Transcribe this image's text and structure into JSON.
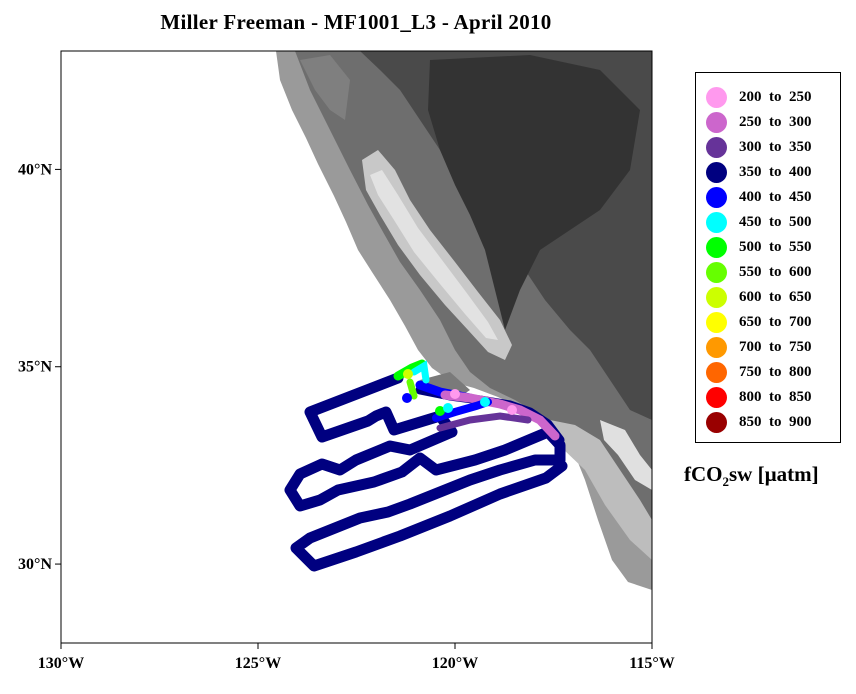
{
  "title": "Miller Freeman - MF1001_L3 - April 2010",
  "map": {
    "lon_range": [
      -130,
      -115
    ],
    "lat_range": [
      28,
      43
    ],
    "x_ticks": [
      {
        "value": -130,
        "label": "130°W"
      },
      {
        "value": -125,
        "label": "125°W"
      },
      {
        "value": -120,
        "label": "120°W"
      },
      {
        "value": -115,
        "label": "115°W"
      }
    ],
    "y_ticks": [
      {
        "value": 30,
        "label": "30°N"
      },
      {
        "value": 35,
        "label": "35°N"
      },
      {
        "value": 40,
        "label": "40°N"
      }
    ],
    "colors": {
      "ocean": "#ffffff",
      "frame": "#000000"
    }
  },
  "legend": {
    "items": [
      {
        "label": "200  to  250",
        "color": "#ff99ee"
      },
      {
        "label": "250  to  300",
        "color": "#cc66cc"
      },
      {
        "label": "300  to  350",
        "color": "#663399"
      },
      {
        "label": "350  to  400",
        "color": "#000080"
      },
      {
        "label": "400  to  450",
        "color": "#0000ff"
      },
      {
        "label": "450  to  500",
        "color": "#00ffff"
      },
      {
        "label": "500  to  550",
        "color": "#00ff00"
      },
      {
        "label": "550  to  600",
        "color": "#66ff00"
      },
      {
        "label": "600  to  650",
        "color": "#ccff00"
      },
      {
        "label": "650  to  700",
        "color": "#ffff00"
      },
      {
        "label": "700  to  750",
        "color": "#ff9900"
      },
      {
        "label": "750  to  800",
        "color": "#ff6600"
      },
      {
        "label": "800  to  850",
        "color": "#ff0000"
      },
      {
        "label": "850  to  900",
        "color": "#990000"
      }
    ],
    "unit_main": "fCO",
    "unit_sub": "2",
    "unit_rest": "sw [µatm]"
  }
}
